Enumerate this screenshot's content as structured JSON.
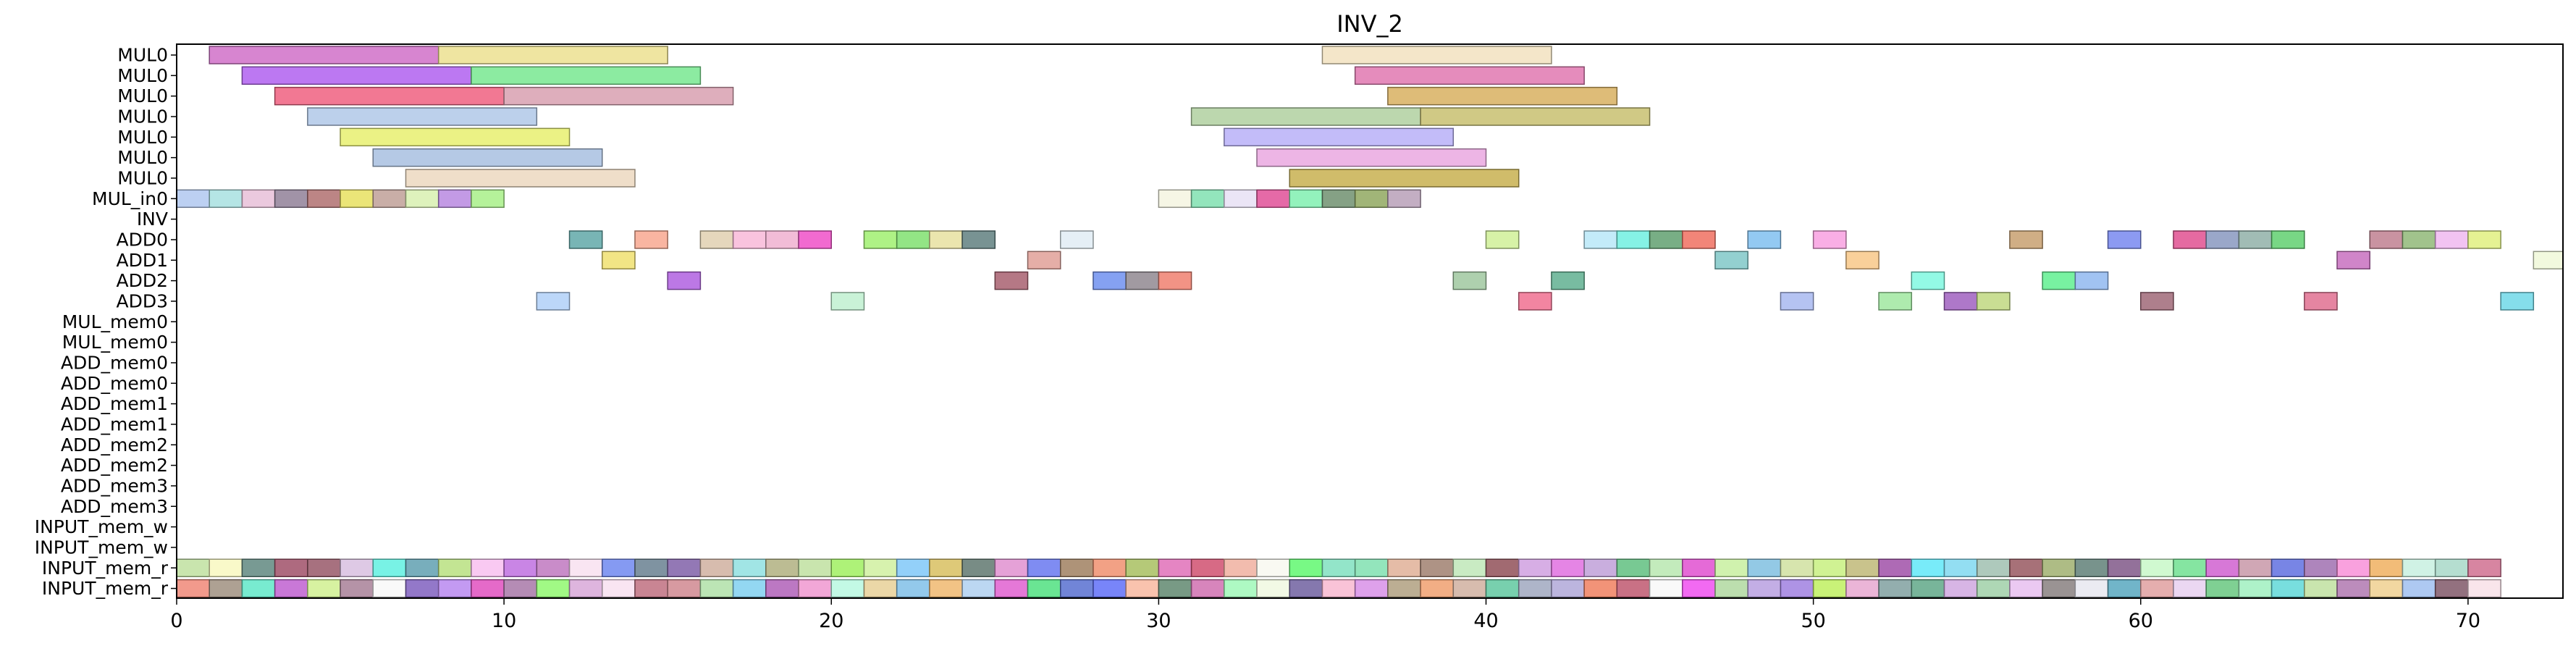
{
  "chart_data": {
    "type": "gantt",
    "title": "INV_2",
    "xlim": [
      0,
      72.9
    ],
    "xticks": [
      0,
      10,
      20,
      30,
      40,
      50,
      60,
      70
    ],
    "rows": [
      "MUL0",
      "MUL0",
      "MUL0",
      "MUL0",
      "MUL0",
      "MUL0",
      "MUL0",
      "MUL_in0",
      "INV",
      "ADD0",
      "ADD1",
      "ADD2",
      "ADD3",
      "MUL_mem0",
      "MUL_mem0",
      "ADD_mem0",
      "ADD_mem0",
      "ADD_mem1",
      "ADD_mem1",
      "ADD_mem2",
      "ADD_mem2",
      "ADD_mem3",
      "ADD_mem3",
      "INPUT_mem_w",
      "INPUT_mem_w",
      "INPUT_mem_r",
      "INPUT_mem_r"
    ],
    "tasks": [
      {
        "row": 0,
        "start": 1,
        "end": 8,
        "color": "#d070c8"
      },
      {
        "row": 0,
        "start": 8,
        "end": 15,
        "color": "#ece090"
      },
      {
        "row": 0,
        "start": 35,
        "end": 42,
        "color": "#f2e2c0"
      },
      {
        "row": 1,
        "start": 2,
        "end": 9,
        "color": "#b060f0"
      },
      {
        "row": 1,
        "start": 9,
        "end": 16,
        "color": "#78e890"
      },
      {
        "row": 1,
        "start": 36,
        "end": 43,
        "color": "#e078b0"
      },
      {
        "row": 2,
        "start": 3,
        "end": 10,
        "color": "#f06080"
      },
      {
        "row": 2,
        "start": 10,
        "end": 17,
        "color": "#d8a0b0"
      },
      {
        "row": 2,
        "start": 37,
        "end": 44,
        "color": "#d8b060"
      },
      {
        "row": 3,
        "start": 4,
        "end": 11,
        "color": "#b0c8e8"
      },
      {
        "row": 3,
        "start": 31,
        "end": 38,
        "color": "#b0d0a0"
      },
      {
        "row": 3,
        "start": 38,
        "end": 45,
        "color": "#c8c070"
      },
      {
        "row": 4,
        "start": 5,
        "end": 12,
        "color": "#e8f070"
      },
      {
        "row": 4,
        "start": 32,
        "end": 39,
        "color": "#b8b0f8"
      },
      {
        "row": 5,
        "start": 6,
        "end": 13,
        "color": "#a8c0e0"
      },
      {
        "row": 5,
        "start": 33,
        "end": 40,
        "color": "#eaa8e0"
      },
      {
        "row": 6,
        "start": 7,
        "end": 14,
        "color": "#ecd8c0"
      },
      {
        "row": 6,
        "start": 34,
        "end": 41,
        "color": "#c8b050"
      },
      {
        "row": 7,
        "start": 0,
        "end": 1,
        "color": "#b0c8f0"
      },
      {
        "row": 7,
        "start": 1,
        "end": 2,
        "color": "#a8e0e0"
      },
      {
        "row": 7,
        "start": 2,
        "end": 3,
        "color": "#e8c0d8"
      },
      {
        "row": 7,
        "start": 3,
        "end": 4,
        "color": "#908098"
      },
      {
        "row": 7,
        "start": 4,
        "end": 5,
        "color": "#b07070"
      },
      {
        "row": 7,
        "start": 5,
        "end": 6,
        "color": "#e8e060"
      },
      {
        "row": 7,
        "start": 6,
        "end": 7,
        "color": "#c0a098"
      },
      {
        "row": 7,
        "start": 7,
        "end": 8,
        "color": "#d8f0b0"
      },
      {
        "row": 7,
        "start": 8,
        "end": 9,
        "color": "#b888e0"
      },
      {
        "row": 7,
        "start": 9,
        "end": 10,
        "color": "#a8f088"
      },
      {
        "row": 7,
        "start": 30,
        "end": 31,
        "color": "#f4f4e0"
      },
      {
        "row": 7,
        "start": 31,
        "end": 32,
        "color": "#80e0b0"
      },
      {
        "row": 7,
        "start": 32,
        "end": 33,
        "color": "#e8e0f4"
      },
      {
        "row": 7,
        "start": 33,
        "end": 34,
        "color": "#e05098"
      },
      {
        "row": 7,
        "start": 34,
        "end": 35,
        "color": "#80f0b0"
      },
      {
        "row": 7,
        "start": 35,
        "end": 36,
        "color": "#709070"
      },
      {
        "row": 7,
        "start": 36,
        "end": 37,
        "color": "#90a860"
      },
      {
        "row": 7,
        "start": 37,
        "end": 38,
        "color": "#b8a0b8"
      },
      {
        "row": 9,
        "start": 12,
        "end": 13,
        "color": "#60a8a8"
      },
      {
        "row": 9,
        "start": 14,
        "end": 15,
        "color": "#f8a890"
      },
      {
        "row": 9,
        "start": 16,
        "end": 17,
        "color": "#e0d0b0"
      },
      {
        "row": 9,
        "start": 17,
        "end": 18,
        "color": "#f8b8d8"
      },
      {
        "row": 9,
        "start": 18,
        "end": 19,
        "color": "#f0b0d0"
      },
      {
        "row": 9,
        "start": 19,
        "end": 20,
        "color": "#f050c8"
      },
      {
        "row": 9,
        "start": 21,
        "end": 22,
        "color": "#a0f070"
      },
      {
        "row": 9,
        "start": 22,
        "end": 23,
        "color": "#80e070"
      },
      {
        "row": 9,
        "start": 23,
        "end": 24,
        "color": "#e8e0a0"
      },
      {
        "row": 9,
        "start": 24,
        "end": 25,
        "color": "#608080"
      },
      {
        "row": 9,
        "start": 27,
        "end": 28,
        "color": "#e0ecf4"
      },
      {
        "row": 9,
        "start": 40,
        "end": 41,
        "color": "#d0f098"
      },
      {
        "row": 9,
        "start": 43,
        "end": 44,
        "color": "#b8e8f8"
      },
      {
        "row": 9,
        "start": 44,
        "end": 45,
        "color": "#70f0e0"
      },
      {
        "row": 9,
        "start": 45,
        "end": 46,
        "color": "#60a070"
      },
      {
        "row": 9,
        "start": 46,
        "end": 47,
        "color": "#f07060"
      },
      {
        "row": 9,
        "start": 48,
        "end": 49,
        "color": "#80c0f0"
      },
      {
        "row": 9,
        "start": 50,
        "end": 51,
        "color": "#f8a0e0"
      },
      {
        "row": 9,
        "start": 56,
        "end": 57,
        "color": "#c8a070"
      },
      {
        "row": 9,
        "start": 59,
        "end": 60,
        "color": "#7888f0"
      },
      {
        "row": 9,
        "start": 61,
        "end": 62,
        "color": "#e05090"
      },
      {
        "row": 9,
        "start": 62,
        "end": 63,
        "color": "#8898c0"
      },
      {
        "row": 9,
        "start": 63,
        "end": 64,
        "color": "#90b0a8"
      },
      {
        "row": 9,
        "start": 64,
        "end": 65,
        "color": "#60d070"
      },
      {
        "row": 9,
        "start": 67,
        "end": 68,
        "color": "#c08090"
      },
      {
        "row": 9,
        "start": 68,
        "end": 69,
        "color": "#90b878"
      },
      {
        "row": 9,
        "start": 69,
        "end": 70,
        "color": "#f0b8f0"
      },
      {
        "row": 9,
        "start": 70,
        "end": 71,
        "color": "#e0f080"
      },
      {
        "row": 10,
        "start": 13,
        "end": 14,
        "color": "#f0e070"
      },
      {
        "row": 10,
        "start": 26,
        "end": 27,
        "color": "#e0a098"
      },
      {
        "row": 10,
        "start": 47,
        "end": 48,
        "color": "#80c8c8"
      },
      {
        "row": 10,
        "start": 51,
        "end": 52,
        "color": "#f8c888"
      },
      {
        "row": 10,
        "start": 66,
        "end": 67,
        "color": "#c870c0"
      },
      {
        "row": 10,
        "start": 72,
        "end": 73,
        "color": "#f0f8d8"
      },
      {
        "row": 11,
        "start": 15,
        "end": 16,
        "color": "#b060e0"
      },
      {
        "row": 11,
        "start": 25,
        "end": 26,
        "color": "#a86070"
      },
      {
        "row": 11,
        "start": 28,
        "end": 29,
        "color": "#7090f0"
      },
      {
        "row": 11,
        "start": 29,
        "end": 30,
        "color": "#908890"
      },
      {
        "row": 11,
        "start": 30,
        "end": 31,
        "color": "#f08070"
      },
      {
        "row": 11,
        "start": 39,
        "end": 40,
        "color": "#a0c8a0"
      },
      {
        "row": 11,
        "start": 42,
        "end": 43,
        "color": "#60b090"
      },
      {
        "row": 11,
        "start": 53,
        "end": 54,
        "color": "#80f8e0"
      },
      {
        "row": 11,
        "start": 57,
        "end": 58,
        "color": "#60f090"
      },
      {
        "row": 11,
        "start": 58,
        "end": 59,
        "color": "#90b8f0"
      },
      {
        "row": 12,
        "start": 11,
        "end": 12,
        "color": "#b0d0f8"
      },
      {
        "row": 12,
        "start": 20,
        "end": 21,
        "color": "#c0f0d0"
      },
      {
        "row": 12,
        "start": 41,
        "end": 42,
        "color": "#f07090"
      },
      {
        "row": 12,
        "start": 49,
        "end": 50,
        "color": "#a8b8f0"
      },
      {
        "row": 12,
        "start": 52,
        "end": 53,
        "color": "#a0e8a0"
      },
      {
        "row": 12,
        "start": 54,
        "end": 55,
        "color": "#a060c0"
      },
      {
        "row": 12,
        "start": 55,
        "end": 56,
        "color": "#c0d880"
      },
      {
        "row": 12,
        "start": 60,
        "end": 61,
        "color": "#a06878"
      },
      {
        "row": 12,
        "start": 65,
        "end": 66,
        "color": "#e07090"
      },
      {
        "row": 12,
        "start": 71,
        "end": 72,
        "color": "#70d8e8"
      }
    ],
    "input_rows": [
      {
        "row": 25,
        "colors": [
          "#c0e0a0",
          "#f8f8c0",
          "#608880",
          "#a05068",
          "#985868",
          "#d8c0e0",
          "#60f0e0",
          "#60a0b0",
          "#b8e080",
          "#f8c0f0",
          "#c070e0",
          "#c078c0",
          "#f8e0f0",
          "#7088f0",
          "#688090",
          "#8060a8",
          "#d0b0a0",
          "#90e0e0",
          "#b0b080",
          "#c0e0a0",
          "#a0f060",
          "#d0f0a0",
          "#80c8f8",
          "#d8c060",
          "#607870",
          "#e090d0",
          "#6878f0",
          "#a08060",
          "#f09070",
          "#a8c060",
          "#e070b8",
          "#d05070",
          "#f0b0a0",
          "#f8f8f0",
          "#60f870",
          "#80e0c0",
          "#80e0b0",
          "#e0b098",
          "#a08070",
          "#c0e8b8",
          "#905058",
          "#d0a0e0",
          "#e070e0",
          "#c0a0d8",
          "#60c080",
          "#b8e8b0",
          "#e050d0",
          "#c8f0a0",
          "#80c0e0",
          "#d0e0a0",
          "#c8f080",
          "#c0b878",
          "#a050a8",
          "#60e8f8",
          "#80d8f0",
          "#a0c0b0",
          "#985860",
          "#a0b070",
          "#608078",
          "#805888",
          "#c8f8c8",
          "#70e090",
          "#d060d0",
          "#c898a8",
          "#6070e0",
          "#a070b0",
          "#f890d8",
          "#f0b060",
          "#c8f0e0",
          "#a8d8c8",
          "#d07090"
        ]
      },
      {
        "row": 26,
        "colors": [
          "#f08878",
          "#a09080",
          "#60e8c8",
          "#c060d0",
          "#d0f090",
          "#a88098",
          "#f8f8f8",
          "#8060c0",
          "#b888f0",
          "#e050c0",
          "#a878a8",
          "#90f870",
          "#d8a8d8",
          "#f8e0f0",
          "#c07080",
          "#d08890",
          "#b0e0a8",
          "#80d0f0",
          "#b060b8",
          "#f098d0",
          "#b8f8e0",
          "#e8d098",
          "#80c0e8",
          "#f0b870",
          "#b0d0f0",
          "#e060d0",
          "#50e080",
          "#5870d0",
          "#6070f8",
          "#f8b8a0",
          "#608870",
          "#d070b0",
          "#a0f8b8",
          "#f0f8e0",
          "#7060a0",
          "#f8b8d0",
          "#d890e8",
          "#b0a080",
          "#f0a070",
          "#d0b0a0",
          "#60c8a0",
          "#a0a8c0",
          "#b0a8d8",
          "#f08060",
          "#c05870",
          "#f8f8f8",
          "#f050f0",
          "#b0d8a0",
          "#b8a0e0",
          "#a080e0",
          "#c0f060",
          "#e8a8d0",
          "#80a0a0",
          "#60a888",
          "#d0a8e0",
          "#a0d0a8",
          "#e8c0f0",
          "#888080",
          "#e8e8f0",
          "#58a8c0",
          "#e0a0a0",
          "#e8d0f0",
          "#68c880",
          "#a0f0c0",
          "#60d8d8",
          "#c0e0a0",
          "#b078b0",
          "#f0d090",
          "#a0c0f0",
          "#805868",
          "#f8e0e8"
        ]
      }
    ]
  }
}
